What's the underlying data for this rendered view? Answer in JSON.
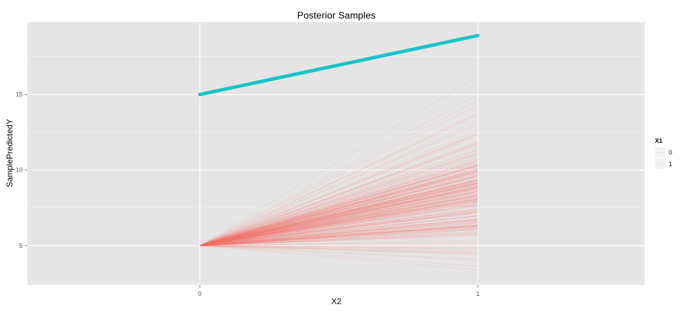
{
  "chart_data": {
    "type": "line",
    "title": "Posterior Samples",
    "xlabel": "X2",
    "ylabel": "SamplePredictedY",
    "x": [
      0,
      1
    ],
    "x_ticks": [
      "0",
      "1"
    ],
    "xlim": [
      -0.62,
      1.6
    ],
    "y_ticks": [
      5,
      10,
      15
    ],
    "ylim": [
      2.4,
      19.8
    ],
    "grid": true,
    "legend": {
      "title": "X1",
      "position": "right",
      "entries": [
        "0",
        "1"
      ]
    },
    "series": [
      {
        "group": "0",
        "color": "#F8766D",
        "alpha": 0.12,
        "intercept": 5.0,
        "slope_samples": {
          "description_range": "x=1 endpoints from 3.4 to 16.2",
          "count": 300,
          "end_min": 3.4,
          "end_max": 16.2,
          "end_center": 8.5
        },
        "representative_ends": [
          3.4,
          4.1,
          4.6,
          5.2,
          5.8,
          6.3,
          6.9,
          7.4,
          7.9,
          8.4,
          8.9,
          9.4,
          9.9,
          10.5,
          11.1,
          11.8,
          12.3,
          13.0,
          13.6,
          14.3,
          14.6,
          15.0,
          16.2
        ]
      },
      {
        "group": "1",
        "color": "#00BFC4",
        "alpha": 0.9,
        "values": [
          15.0,
          18.9
        ]
      }
    ]
  }
}
